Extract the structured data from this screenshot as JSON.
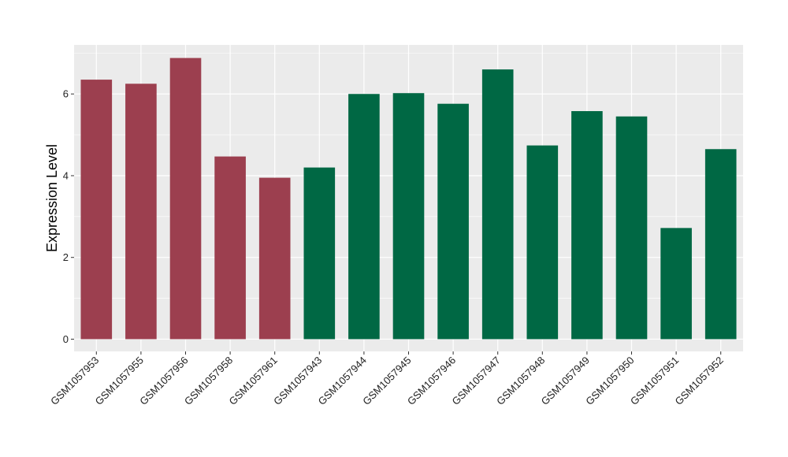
{
  "chart_data": {
    "type": "bar",
    "title": "",
    "xlabel": "",
    "ylabel": "Expression Level",
    "ylim": [
      -0.3,
      7.2
    ],
    "yticks": [
      0,
      2,
      4,
      6
    ],
    "grid": true,
    "legend": "none",
    "colors": {
      "group_a": "#9C3F4F",
      "group_b": "#006844",
      "panel_bg": "#EBEBEB",
      "grid": "#FFFFFF"
    },
    "categories": [
      "GSM1057953",
      "GSM1057955",
      "GSM1057956",
      "GSM1057958",
      "GSM1057961",
      "GSM1057943",
      "GSM1057944",
      "GSM1057945",
      "GSM1057946",
      "GSM1057947",
      "GSM1057948",
      "GSM1057949",
      "GSM1057950",
      "GSM1057951",
      "GSM1057952"
    ],
    "values": [
      6.35,
      6.25,
      6.88,
      4.47,
      3.95,
      4.2,
      6.0,
      6.02,
      5.76,
      6.6,
      4.74,
      5.58,
      5.45,
      2.72,
      4.65
    ],
    "bar_groups": [
      "a",
      "a",
      "a",
      "a",
      "a",
      "b",
      "b",
      "b",
      "b",
      "b",
      "b",
      "b",
      "b",
      "b",
      "b"
    ]
  }
}
